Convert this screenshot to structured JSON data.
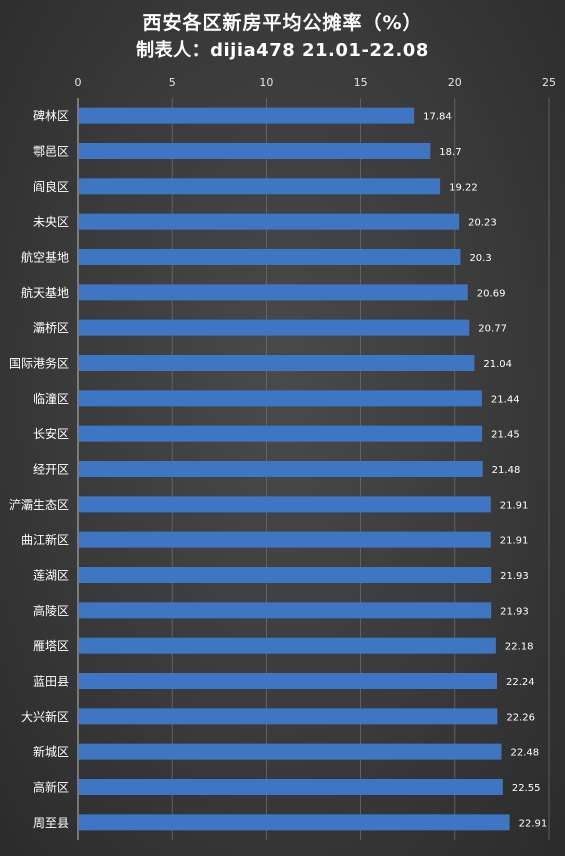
{
  "title_line1": "西安各区新房平均公摊率（%）",
  "title_line2": "制表人：dijia478   21.01-22.08",
  "chart_data": {
    "type": "bar",
    "orientation": "horizontal",
    "title": "西安各区新房平均公摊率（%）",
    "subtitle": "制表人：dijia478   21.01-22.08",
    "xlim": [
      0,
      25
    ],
    "xticks": [
      0,
      5,
      10,
      15,
      20,
      25
    ],
    "xaxis_position": "top",
    "grid": true,
    "bar_color": "#3f76c4",
    "categories": [
      "碑林区",
      "鄠邑区",
      "阎良区",
      "未央区",
      "航空基地",
      "航天基地",
      "灞桥区",
      "国际港务区",
      "临潼区",
      "长安区",
      "经开区",
      "浐灞生态区",
      "曲江新区",
      "莲湖区",
      "高陵区",
      "雁塔区",
      "蓝田县",
      "大兴新区",
      "新城区",
      "高新区",
      "周至县"
    ],
    "values": [
      17.84,
      18.7,
      19.22,
      20.23,
      20.3,
      20.69,
      20.77,
      21.04,
      21.44,
      21.45,
      21.48,
      21.91,
      21.91,
      21.93,
      21.93,
      22.18,
      22.24,
      22.26,
      22.48,
      22.55,
      22.91
    ],
    "value_labels": [
      "17.84",
      "18.7",
      "19.22",
      "20.23",
      "20.3",
      "20.69",
      "20.77",
      "21.04",
      "21.44",
      "21.45",
      "21.48",
      "21.91",
      "21.91",
      "21.93",
      "21.93",
      "22.18",
      "22.24",
      "22.26",
      "22.48",
      "22.55",
      "22.91"
    ]
  }
}
